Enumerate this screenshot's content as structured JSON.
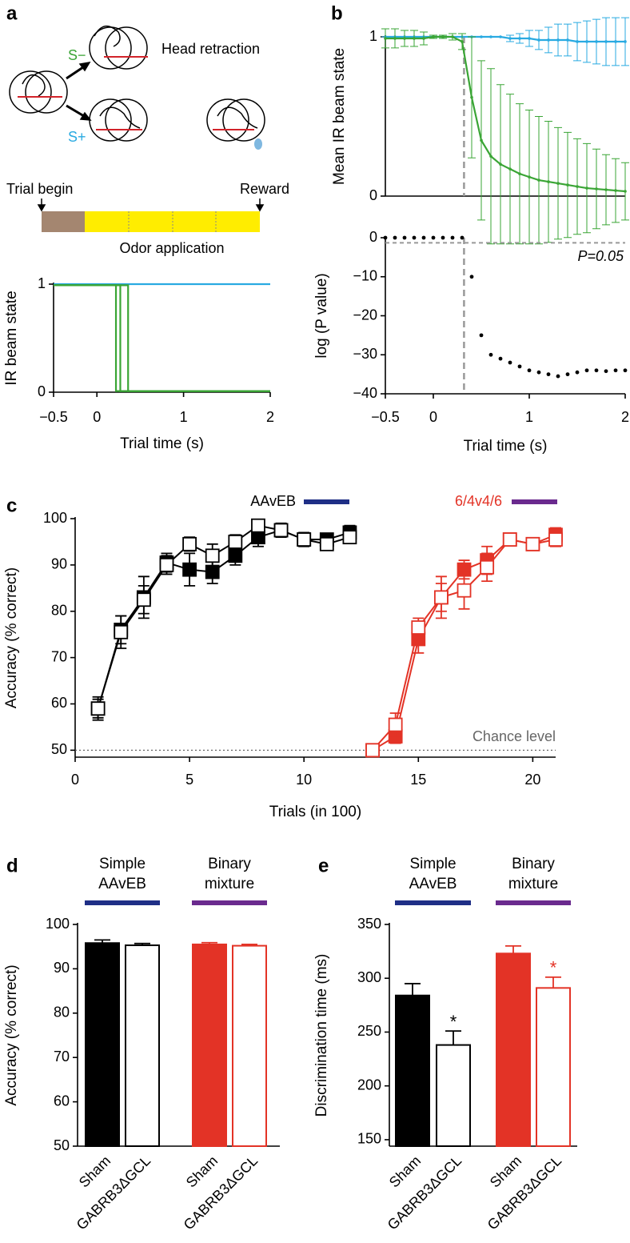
{
  "panel_labels": [
    "a",
    "b",
    "c",
    "d",
    "e"
  ],
  "diagram": {
    "s_minus": "S−",
    "s_plus": "S+",
    "head_retraction": "Head retraction",
    "trial_begin": "Trial begin",
    "reward": "Reward",
    "odor_application": "Odor application"
  },
  "chart_data": [
    {
      "type": "line",
      "xlabel": "Trial time (s)",
      "ylabel": "IR beam state",
      "xlim": [
        -0.5,
        2
      ],
      "xticks": [
        {
          "value": -0.5,
          "label": "−0.5"
        },
        0,
        1,
        2
      ],
      "ylim": [
        0,
        1
      ],
      "yticks": [
        0,
        1
      ],
      "series": [
        {
          "color": "#29aae1",
          "x": [
            -0.5,
            2
          ],
          "values": [
            1,
            1
          ]
        },
        {
          "color": "#3aa535",
          "x": [
            -0.5,
            0.22,
            0.22,
            2
          ],
          "values": [
            0.99,
            0.99,
            0.01,
            0.01
          ]
        },
        {
          "color": "#3aa535",
          "x": [
            -0.5,
            0.27,
            0.27,
            2
          ],
          "values": [
            0.99,
            0.99,
            0.01,
            0.01
          ]
        },
        {
          "color": "#3aa535",
          "x": [
            -0.5,
            0.36,
            0.36,
            2
          ],
          "values": [
            0.99,
            0.99,
            0.01,
            0.01
          ]
        }
      ]
    },
    {
      "type": "line",
      "ylabel": "Mean IR beam state",
      "xlim": [
        -0.5,
        2
      ],
      "ylim": [
        0,
        1
      ],
      "yticks": [
        0,
        1
      ],
      "onset_x": 0.32,
      "series": [
        {
          "color": "#29aae1",
          "x": [
            -0.5,
            -0.4,
            -0.3,
            -0.2,
            -0.1,
            0,
            0.1,
            0.2,
            0.3,
            0.4,
            0.5,
            0.6,
            0.7,
            0.8,
            0.9,
            1,
            1.1,
            1.2,
            1.3,
            1.4,
            1.5,
            1.6,
            1.7,
            1.8,
            1.9,
            2
          ],
          "values": [
            1,
            1,
            1,
            1,
            1,
            1,
            1,
            1,
            1,
            1,
            1,
            1,
            1,
            0.99,
            0.99,
            0.99,
            0.98,
            0.98,
            0.98,
            0.98,
            0.97,
            0.97,
            0.97,
            0.97,
            0.97,
            0.97
          ],
          "errors": [
            0,
            0,
            0,
            0,
            0,
            0,
            0,
            0,
            0,
            0,
            0,
            0,
            0,
            0.02,
            0.03,
            0.05,
            0.06,
            0.08,
            0.1,
            0.1,
            0.12,
            0.13,
            0.14,
            0.15,
            0.15,
            0.15
          ]
        },
        {
          "color": "#3aa535",
          "x": [
            -0.5,
            -0.4,
            -0.3,
            -0.2,
            -0.1,
            0,
            0.1,
            0.2,
            0.3,
            0.4,
            0.5,
            0.6,
            0.7,
            0.8,
            0.9,
            1,
            1.1,
            1.2,
            1.3,
            1.4,
            1.5,
            1.6,
            1.7,
            1.8,
            1.9,
            2
          ],
          "values": [
            0.99,
            0.99,
            0.99,
            0.99,
            0.99,
            1,
            1,
            1,
            0.97,
            0.62,
            0.35,
            0.25,
            0.2,
            0.17,
            0.14,
            0.12,
            0.1,
            0.09,
            0.08,
            0.07,
            0.06,
            0.05,
            0.045,
            0.04,
            0.035,
            0.03
          ],
          "errors": [
            0.06,
            0.06,
            0.05,
            0.05,
            0.04,
            0.01,
            0.01,
            0.02,
            0.05,
            0.38,
            0.5,
            0.55,
            0.5,
            0.47,
            0.44,
            0.42,
            0.4,
            0.38,
            0.35,
            0.33,
            0.3,
            0.28,
            0.25,
            0.22,
            0.2,
            0.18
          ]
        }
      ]
    },
    {
      "type": "scatter",
      "xlabel": "Trial time (s)",
      "ylabel": "log (P value)",
      "annotation": "P=0.05",
      "reference_y": -1.3,
      "onset_x": 0.32,
      "xlim": [
        -0.5,
        2
      ],
      "xticks": [
        {
          "value": -0.5,
          "label": "−0.5"
        },
        0,
        1,
        2
      ],
      "ylim": [
        -40,
        0
      ],
      "yticks": [
        0,
        {
          "value": -10,
          "label": "−10"
        },
        {
          "value": -20,
          "label": "−20"
        },
        {
          "value": -30,
          "label": "−30"
        },
        {
          "value": -40,
          "label": "−40"
        }
      ],
      "color": "#000000",
      "x": [
        -0.5,
        -0.4,
        -0.3,
        -0.2,
        -0.1,
        0,
        0.1,
        0.2,
        0.3,
        0.4,
        0.5,
        0.6,
        0.7,
        0.8,
        0.9,
        1,
        1.1,
        1.2,
        1.3,
        1.4,
        1.5,
        1.6,
        1.7,
        1.8,
        1.9,
        2
      ],
      "values": [
        0,
        0,
        0,
        0,
        0,
        0,
        0,
        0,
        0,
        -10,
        -25,
        -30,
        -31,
        -32,
        -33,
        -34,
        -34.5,
        -35,
        -35.5,
        -35,
        -34.5,
        -34,
        -34,
        -34.2,
        -34,
        -34
      ]
    },
    {
      "type": "line",
      "xlabel": "Trials (in 100)",
      "ylabel": "Accuracy (% correct)",
      "xlim": [
        0,
        21
      ],
      "xticks": [
        0,
        5,
        10,
        15,
        20
      ],
      "ylim": [
        48.5,
        100
      ],
      "yticks": [
        50,
        60,
        70,
        80,
        90,
        100
      ],
      "chance_level": 50,
      "chance_label": "Chance level",
      "legend": [
        {
          "name": "AAvEB",
          "color": "#1f2f86",
          "text_color": "#000000"
        },
        {
          "name": "6/4v4/6",
          "color": "#6a2a8e",
          "text_color": "#e33326"
        }
      ],
      "series": [
        {
          "color": "#000000",
          "marker": "filled",
          "x": [
            1,
            2,
            3,
            4,
            5,
            6,
            7,
            8,
            9,
            10,
            11,
            12
          ],
          "values": [
            59,
            76,
            83,
            90.5,
            89,
            88.5,
            92,
            96,
            97.5,
            95.5,
            95.5,
            97
          ],
          "errors": [
            2.5,
            3,
            4.5,
            2,
            3.5,
            2.5,
            2,
            2,
            1.5,
            1.5,
            1,
            1.5
          ]
        },
        {
          "color": "#000000",
          "marker": "open",
          "x": [
            1,
            2,
            3,
            4,
            5,
            6,
            7,
            8,
            9,
            10,
            11,
            12
          ],
          "values": [
            59,
            75.5,
            82.5,
            90,
            94.5,
            92,
            95,
            98.5,
            97.5,
            95.5,
            94.5,
            96
          ],
          "errors": [
            2,
            3.5,
            3,
            2,
            1.5,
            2.5,
            1.5,
            1,
            1,
            1,
            1,
            1
          ]
        },
        {
          "color": "#e33326",
          "marker": "filled",
          "x": [
            13,
            14,
            15,
            16,
            17,
            18,
            19,
            20,
            21
          ],
          "values": [
            50,
            53,
            74,
            83,
            89,
            91,
            95.5,
            94.5,
            96.5
          ],
          "errors": [
            1,
            1.5,
            3,
            4.5,
            2,
            3,
            1,
            1,
            1.5
          ]
        },
        {
          "color": "#e33326",
          "marker": "open",
          "x": [
            13,
            14,
            15,
            16,
            17,
            18,
            19,
            20,
            21
          ],
          "values": [
            50,
            55.5,
            76.5,
            83,
            84.5,
            89.5,
            95.5,
            94.5,
            95.5
          ],
          "errors": [
            1,
            2.5,
            2,
            3,
            4,
            3,
            1,
            1,
            1.5
          ]
        }
      ]
    },
    {
      "type": "bar",
      "ylabel": "Accuracy (% correct)",
      "ylim": [
        50,
        100
      ],
      "yticks": [
        50,
        60,
        70,
        80,
        90,
        100
      ],
      "categories": [
        "Sham",
        "GABRB3ΔGCL",
        "Sham",
        "GABRB3ΔGCL"
      ],
      "values": [
        95.8,
        95.3,
        95.5,
        95.2
      ],
      "errors": [
        0.7,
        0.4,
        0.4,
        0.3
      ],
      "colors": [
        "#000000",
        "#ffffff",
        "#e33326",
        "#ffffff"
      ],
      "edge_colors": [
        "#000000",
        "#000000",
        "#e33326",
        "#e33326"
      ],
      "groups": [
        {
          "label": [
            "Simple",
            "AAvEB"
          ],
          "color": "#1f2f86"
        },
        {
          "label": [
            "Binary",
            "mixture"
          ],
          "color": "#6a2a8e"
        }
      ]
    },
    {
      "type": "bar",
      "ylabel": "Discrimination time (ms)",
      "ylim": [
        144,
        350
      ],
      "yticks": [
        150,
        200,
        250,
        300,
        350
      ],
      "categories": [
        "Sham",
        "GABRB3ΔGCL",
        "Sham",
        "GABRB3ΔGCL"
      ],
      "values": [
        284,
        238,
        323,
        291
      ],
      "errors": [
        11,
        13,
        7,
        10
      ],
      "significance": [
        null,
        "*",
        null,
        "*"
      ],
      "colors": [
        "#000000",
        "#ffffff",
        "#e33326",
        "#ffffff"
      ],
      "edge_colors": [
        "#000000",
        "#000000",
        "#e33326",
        "#e33326"
      ],
      "groups": [
        {
          "label": [
            "Simple",
            "AAvEB"
          ],
          "color": "#1f2f86"
        },
        {
          "label": [
            "Binary",
            "mixture"
          ],
          "color": "#6a2a8e"
        }
      ]
    }
  ]
}
